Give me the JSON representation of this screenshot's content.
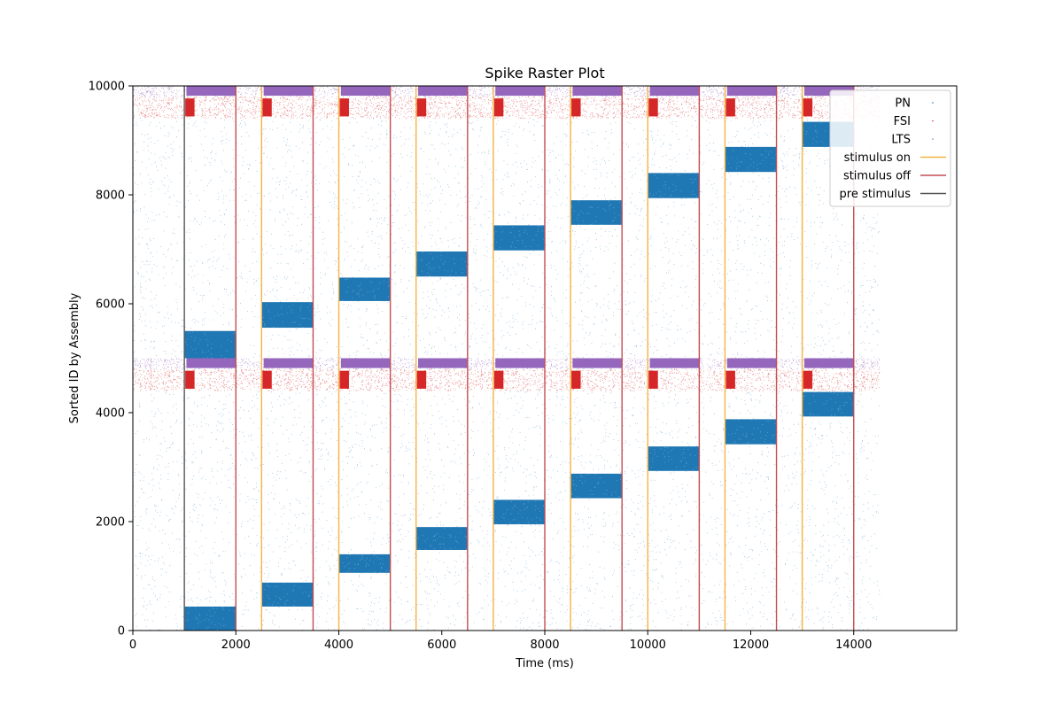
{
  "chart_data": {
    "type": "scatter",
    "title": "Spike Raster Plot",
    "xlabel": "Time (ms)",
    "ylabel": "Sorted ID by Assembly",
    "xlim": [
      0,
      16000
    ],
    "ylim": [
      0,
      10000
    ],
    "xticks": [
      0,
      2000,
      4000,
      6000,
      8000,
      10000,
      12000,
      14000
    ],
    "yticks": [
      0,
      2000,
      4000,
      6000,
      8000,
      10000
    ],
    "xtick_labels": [
      "0",
      "2000",
      "4000",
      "6000",
      "8000",
      "10000",
      "12000",
      "14000"
    ],
    "ytick_labels": [
      "0",
      "2000",
      "4000",
      "6000",
      "8000",
      "10000"
    ],
    "grid": false,
    "legend_position": "top-right",
    "recording_range_ms": [
      0,
      14500
    ],
    "series": [
      {
        "name": "PN",
        "color": "#1f77b4",
        "id_bands": [
          [
            0,
            4400
          ],
          [
            5000,
            9400
          ]
        ],
        "assembly_blocks": [
          {
            "t": [
              1000,
              2000
            ],
            "id": [
              0,
              440
            ]
          },
          {
            "t": [
              2500,
              3500
            ],
            "id": [
              440,
              880
            ]
          },
          {
            "t": [
              4000,
              5000
            ],
            "id": [
              1060,
              1400
            ]
          },
          {
            "t": [
              5500,
              6500
            ],
            "id": [
              1480,
              1900
            ]
          },
          {
            "t": [
              7000,
              8000
            ],
            "id": [
              1950,
              2400
            ]
          },
          {
            "t": [
              8500,
              9500
            ],
            "id": [
              2430,
              2880
            ]
          },
          {
            "t": [
              10000,
              11000
            ],
            "id": [
              2930,
              3380
            ]
          },
          {
            "t": [
              11500,
              12500
            ],
            "id": [
              3420,
              3880
            ]
          },
          {
            "t": [
              13000,
              14000
            ],
            "id": [
              3930,
              4380
            ]
          },
          {
            "t": [
              1000,
              2000
            ],
            "id": [
              5000,
              5500
            ]
          },
          {
            "t": [
              2500,
              3500
            ],
            "id": [
              5560,
              6030
            ]
          },
          {
            "t": [
              4000,
              5000
            ],
            "id": [
              6050,
              6480
            ]
          },
          {
            "t": [
              5500,
              6500
            ],
            "id": [
              6500,
              6960
            ]
          },
          {
            "t": [
              7000,
              8000
            ],
            "id": [
              6980,
              7440
            ]
          },
          {
            "t": [
              8500,
              9500
            ],
            "id": [
              7450,
              7900
            ]
          },
          {
            "t": [
              10000,
              11000
            ],
            "id": [
              7940,
              8400
            ]
          },
          {
            "t": [
              11500,
              12500
            ],
            "id": [
              8420,
              8880
            ]
          },
          {
            "t": [
              13000,
              14000
            ],
            "id": [
              8880,
              9340
            ]
          }
        ]
      },
      {
        "name": "FSI",
        "color": "#d62728",
        "id_bands": [
          [
            4400,
            4800
          ],
          [
            9400,
            9800
          ]
        ]
      },
      {
        "name": "LTS",
        "color": "#9467bd",
        "id_bands": [
          [
            4800,
            5000
          ],
          [
            9800,
            10000
          ]
        ]
      }
    ],
    "event_lines": [
      {
        "name": "stimulus on",
        "color": "#f5b342",
        "x": [
          2500,
          4000,
          5500,
          7000,
          8500,
          10000,
          11500,
          13000
        ]
      },
      {
        "name": "stimulus off",
        "color": "#c44e52",
        "x": [
          2000,
          3500,
          5000,
          6500,
          8000,
          9500,
          11000,
          12500,
          14000
        ]
      },
      {
        "name": "pre stimulus",
        "color": "#555555",
        "x": [
          1000
        ]
      }
    ]
  }
}
